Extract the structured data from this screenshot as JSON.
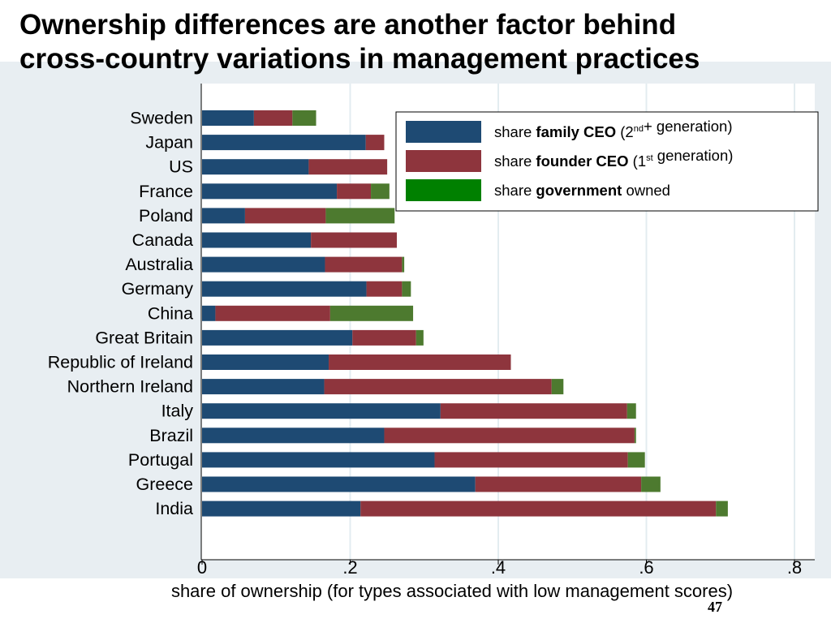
{
  "slide": {
    "title_line1": "Ownership differences are another factor behind",
    "title_line2": "cross-country variations in management practices",
    "page_number": "47"
  },
  "colors": {
    "family_ceo": "#1e4a73",
    "founder_ceo": "#8e353d",
    "government": "#4d7a2f",
    "legend_government_swatch": "#008000",
    "background": "#e8eef2",
    "plot_area": "#ffffff"
  },
  "chart_data": {
    "type": "bar",
    "orientation": "horizontal",
    "stacked": true,
    "categories": [
      "Sweden",
      "Japan",
      "US",
      "France",
      "Poland",
      "Canada",
      "Australia",
      "Germany",
      "China",
      "Great Britain",
      "Republic of Ireland",
      "Northern Ireland",
      "Italy",
      "Brazil",
      "Portugal",
      "Greece",
      "India"
    ],
    "series": [
      {
        "key": "family",
        "color": "#1e4a73",
        "values": [
          0.07,
          0.221,
          0.144,
          0.182,
          0.058,
          0.147,
          0.166,
          0.222,
          0.018,
          0.203,
          0.171,
          0.165,
          0.322,
          0.246,
          0.314,
          0.369,
          0.214
        ]
      },
      {
        "key": "founder",
        "color": "#8e353d",
        "values": [
          0.052,
          0.025,
          0.106,
          0.046,
          0.109,
          0.116,
          0.104,
          0.048,
          0.155,
          0.086,
          0.246,
          0.307,
          0.252,
          0.338,
          0.261,
          0.224,
          0.48
        ]
      },
      {
        "key": "government",
        "color": "#4d7a2f",
        "values": [
          0.032,
          0.0,
          0.0,
          0.025,
          0.093,
          0.0,
          0.003,
          0.012,
          0.112,
          0.01,
          0.0,
          0.016,
          0.012,
          0.002,
          0.023,
          0.026,
          0.016
        ]
      }
    ],
    "legend": [
      {
        "pre": "share ",
        "bold": "family CEO",
        "mid": "  (2",
        "sup": "nd",
        "post": "+ generation)",
        "color": "#1e4a73"
      },
      {
        "pre": "share ",
        "bold": "founder CEO",
        "mid": " (1",
        "sup": "st",
        "post": " generation)",
        "color": "#8e353d"
      },
      {
        "pre": "share ",
        "bold": "government",
        "mid": " owned",
        "sup": "",
        "post": "",
        "color": "#008000"
      }
    ],
    "legend_position": "top-right",
    "xlabel": "share of ownership (for types associated with low management scores)",
    "xlim": [
      0,
      0.82
    ],
    "xticks": [
      0,
      0.2,
      0.4,
      0.6,
      0.8
    ],
    "xtick_labels": [
      "0",
      ".2",
      ".4",
      ".6",
      ".8"
    ],
    "grid": true
  }
}
